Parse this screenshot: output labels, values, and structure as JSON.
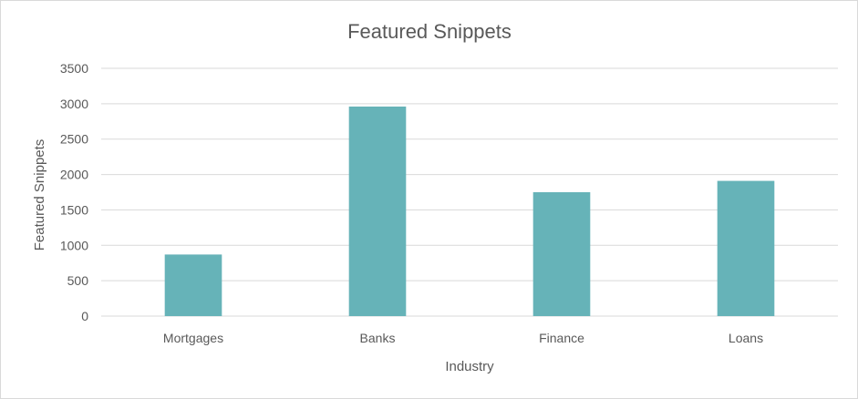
{
  "chart_data": {
    "type": "bar",
    "title": "Featured Snippets",
    "xlabel": "Industry",
    "ylabel": "Featured Snippets",
    "categories": [
      "Mortgages",
      "Banks",
      "Finance",
      "Loans"
    ],
    "values": [
      870,
      2960,
      1750,
      1910
    ],
    "ylim": [
      0,
      3500
    ],
    "yticks": [
      0,
      500,
      1000,
      1500,
      2000,
      2500,
      3000,
      3500
    ],
    "grid": true,
    "legend": "none",
    "bar_color": "#66b3b8"
  }
}
